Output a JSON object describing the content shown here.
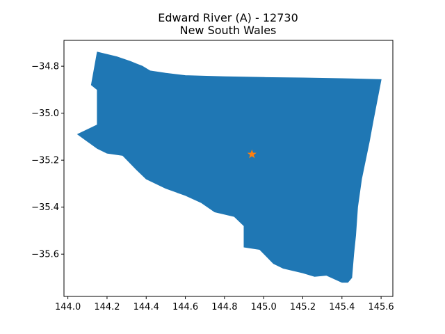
{
  "chart_data": {
    "type": "map",
    "title": "Edward River (A) - 12730",
    "subtitle": "New South Wales",
    "xlabel": "",
    "ylabel": "",
    "xlim": [
      143.98,
      145.66
    ],
    "ylim": [
      -35.78,
      -34.69
    ],
    "x_ticks": [
      "144.0",
      "144.2",
      "144.4",
      "144.6",
      "144.8",
      "145.0",
      "145.2",
      "145.4",
      "145.6"
    ],
    "x_tick_values": [
      144.0,
      144.2,
      144.4,
      144.6,
      144.8,
      145.0,
      145.2,
      145.4,
      145.6
    ],
    "y_ticks": [
      "−34.8",
      "−35.0",
      "−35.2",
      "−35.4",
      "−35.6"
    ],
    "y_tick_values": [
      -34.8,
      -35.0,
      -35.2,
      -35.4,
      -35.6
    ],
    "region_color": "#1f77b4",
    "marker_color": "#ff7f0e",
    "marker": {
      "type": "star",
      "lon": 144.94,
      "lat": -35.175
    },
    "boundary": [
      [
        144.15,
        -34.74
      ],
      [
        144.25,
        -34.76
      ],
      [
        144.32,
        -34.78
      ],
      [
        144.35,
        -34.79
      ],
      [
        144.38,
        -34.8
      ],
      [
        144.42,
        -34.82
      ],
      [
        144.5,
        -34.83
      ],
      [
        144.6,
        -34.84
      ],
      [
        144.8,
        -34.845
      ],
      [
        145.0,
        -34.848
      ],
      [
        145.2,
        -34.85
      ],
      [
        145.4,
        -34.853
      ],
      [
        145.6,
        -34.857
      ],
      [
        145.59,
        -34.9
      ],
      [
        145.56,
        -35.03
      ],
      [
        145.54,
        -35.12
      ],
      [
        145.52,
        -35.2
      ],
      [
        145.5,
        -35.28
      ],
      [
        145.48,
        -35.4
      ],
      [
        145.47,
        -35.52
      ],
      [
        145.46,
        -35.6
      ],
      [
        145.45,
        -35.7
      ],
      [
        145.43,
        -35.72
      ],
      [
        145.4,
        -35.72
      ],
      [
        145.32,
        -35.69
      ],
      [
        145.26,
        -35.695
      ],
      [
        145.2,
        -35.68
      ],
      [
        145.1,
        -35.66
      ],
      [
        145.05,
        -35.64
      ],
      [
        144.98,
        -35.58
      ],
      [
        144.9,
        -35.57
      ],
      [
        144.9,
        -35.48
      ],
      [
        144.85,
        -35.44
      ],
      [
        144.75,
        -35.42
      ],
      [
        144.68,
        -35.38
      ],
      [
        144.6,
        -35.35
      ],
      [
        144.5,
        -35.32
      ],
      [
        144.4,
        -35.28
      ],
      [
        144.35,
        -35.24
      ],
      [
        144.28,
        -35.18
      ],
      [
        144.2,
        -35.17
      ],
      [
        144.15,
        -35.15
      ],
      [
        144.1,
        -35.12
      ],
      [
        144.05,
        -35.09
      ],
      [
        144.15,
        -35.05
      ],
      [
        144.15,
        -34.9
      ],
      [
        144.12,
        -34.88
      ]
    ]
  }
}
